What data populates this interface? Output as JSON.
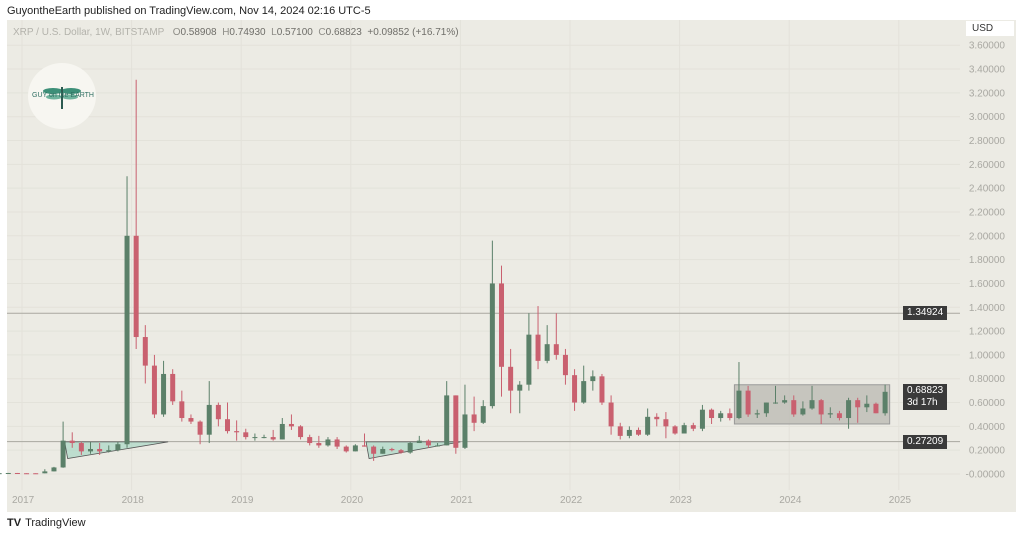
{
  "header": {
    "published": "GuyontheEarth published on TradingView.com, Nov 14, 2024 02:16 UTC-5"
  },
  "legend": {
    "symbol": "XRP / U.S. Dollar, 1W, BITSTAMP",
    "o_label": "O",
    "o": "0.58908",
    "h_label": "H",
    "h": "0.74930",
    "l_label": "L",
    "l": "0.57100",
    "c_label": "C",
    "c": "0.68823",
    "change": "+0.09852 (+16.71%)"
  },
  "currency": "USD",
  "logo": {
    "text": "GUY on the EARTH"
  },
  "footer": {
    "brand": "TradingView",
    "brand_icon": "tradingview-logo-icon"
  },
  "colors": {
    "up": "#5b8069",
    "down": "#c9606f",
    "background": "#ecebe4",
    "pattern_fill": "#9fd3c0",
    "range_box": "#b9b8b2"
  },
  "chart_data": {
    "type": "candlestick",
    "title": "XRP / U.S. Dollar, 1W, BITSTAMP",
    "interval": "1W",
    "y_scale": "linear",
    "ylim": [
      -0.05,
      3.7
    ],
    "grid": true,
    "y_ticks": [
      "3.60000",
      "3.40000",
      "3.20000",
      "3.00000",
      "2.80000",
      "2.60000",
      "2.40000",
      "2.20000",
      "2.00000",
      "1.80000",
      "1.60000",
      "1.40000",
      "1.20000",
      "1.00000",
      "0.80000",
      "0.60000",
      "0.40000",
      "0.20000",
      "-0.00000"
    ],
    "x_ticks": [
      "2017",
      "2018",
      "2019",
      "2020",
      "2021",
      "2022",
      "2023",
      "2024",
      "2025"
    ],
    "start_month": "2016-09",
    "ohlc_monthly_approx": [
      [
        0.0075,
        0.008,
        0.0065,
        0.0068
      ],
      [
        0.0068,
        0.0072,
        0.0065,
        0.007
      ],
      [
        0.007,
        0.009,
        0.0068,
        0.0085
      ],
      [
        0.0085,
        0.0088,
        0.0062,
        0.0065
      ],
      [
        0.0065,
        0.0075,
        0.006,
        0.0063
      ],
      [
        0.0063,
        0.0069,
        0.0055,
        0.0059
      ],
      [
        0.0059,
        0.04,
        0.0058,
        0.022
      ],
      [
        0.022,
        0.06,
        0.021,
        0.055
      ],
      [
        0.055,
        0.44,
        0.052,
        0.28
      ],
      [
        0.28,
        0.35,
        0.22,
        0.26
      ],
      [
        0.26,
        0.27,
        0.16,
        0.19
      ],
      [
        0.19,
        0.27,
        0.17,
        0.21
      ],
      [
        0.21,
        0.26,
        0.16,
        0.19
      ],
      [
        0.19,
        0.24,
        0.18,
        0.2
      ],
      [
        0.2,
        0.27,
        0.19,
        0.25
      ],
      [
        0.25,
        2.5,
        0.22,
        2.0
      ],
      [
        2.0,
        3.31,
        1.05,
        1.15
      ],
      [
        1.15,
        1.25,
        0.76,
        0.91
      ],
      [
        0.91,
        1.0,
        0.47,
        0.5
      ],
      [
        0.5,
        0.95,
        0.48,
        0.84
      ],
      [
        0.84,
        0.88,
        0.58,
        0.61
      ],
      [
        0.61,
        0.7,
        0.44,
        0.47
      ],
      [
        0.47,
        0.5,
        0.42,
        0.44
      ],
      [
        0.44,
        0.45,
        0.25,
        0.33
      ],
      [
        0.33,
        0.78,
        0.26,
        0.58
      ],
      [
        0.58,
        0.6,
        0.4,
        0.46
      ],
      [
        0.46,
        0.6,
        0.34,
        0.36
      ],
      [
        0.36,
        0.45,
        0.28,
        0.35
      ],
      [
        0.35,
        0.38,
        0.29,
        0.31
      ],
      [
        0.31,
        0.34,
        0.28,
        0.31
      ],
      [
        0.31,
        0.33,
        0.3,
        0.31
      ],
      [
        0.31,
        0.37,
        0.28,
        0.29
      ],
      [
        0.29,
        0.47,
        0.29,
        0.42
      ],
      [
        0.42,
        0.5,
        0.37,
        0.4
      ],
      [
        0.4,
        0.41,
        0.29,
        0.31
      ],
      [
        0.31,
        0.33,
        0.24,
        0.26
      ],
      [
        0.26,
        0.32,
        0.22,
        0.24
      ],
      [
        0.24,
        0.31,
        0.23,
        0.29
      ],
      [
        0.29,
        0.31,
        0.21,
        0.23
      ],
      [
        0.23,
        0.24,
        0.18,
        0.19
      ],
      [
        0.19,
        0.25,
        0.19,
        0.24
      ],
      [
        0.24,
        0.34,
        0.23,
        0.23
      ],
      [
        0.23,
        0.24,
        0.11,
        0.17
      ],
      [
        0.17,
        0.23,
        0.17,
        0.21
      ],
      [
        0.21,
        0.22,
        0.19,
        0.2
      ],
      [
        0.2,
        0.21,
        0.17,
        0.18
      ],
      [
        0.18,
        0.27,
        0.17,
        0.26
      ],
      [
        0.26,
        0.32,
        0.26,
        0.28
      ],
      [
        0.28,
        0.29,
        0.22,
        0.24
      ],
      [
        0.24,
        0.26,
        0.23,
        0.24
      ],
      [
        0.24,
        0.78,
        0.24,
        0.66
      ],
      [
        0.66,
        0.66,
        0.17,
        0.22
      ],
      [
        0.22,
        0.75,
        0.21,
        0.5
      ],
      [
        0.5,
        0.65,
        0.36,
        0.43
      ],
      [
        0.43,
        0.62,
        0.42,
        0.57
      ],
      [
        0.57,
        1.96,
        0.55,
        1.6
      ],
      [
        1.6,
        1.75,
        0.65,
        0.9
      ],
      [
        0.9,
        1.05,
        0.51,
        0.7
      ],
      [
        0.7,
        0.78,
        0.51,
        0.75
      ],
      [
        0.75,
        1.35,
        0.7,
        1.17
      ],
      [
        1.17,
        1.41,
        0.88,
        0.95
      ],
      [
        0.95,
        1.25,
        0.93,
        1.09
      ],
      [
        1.09,
        1.35,
        0.96,
        1.0
      ],
      [
        1.0,
        1.05,
        0.75,
        0.83
      ],
      [
        0.83,
        0.88,
        0.53,
        0.6
      ],
      [
        0.6,
        0.91,
        0.59,
        0.78
      ],
      [
        0.78,
        0.87,
        0.7,
        0.82
      ],
      [
        0.82,
        0.84,
        0.58,
        0.6
      ],
      [
        0.6,
        0.66,
        0.33,
        0.4
      ],
      [
        0.4,
        0.43,
        0.29,
        0.32
      ],
      [
        0.32,
        0.4,
        0.3,
        0.37
      ],
      [
        0.37,
        0.39,
        0.32,
        0.33
      ],
      [
        0.33,
        0.55,
        0.32,
        0.48
      ],
      [
        0.48,
        0.51,
        0.4,
        0.46
      ],
      [
        0.46,
        0.52,
        0.3,
        0.4
      ],
      [
        0.4,
        0.41,
        0.33,
        0.34
      ],
      [
        0.34,
        0.43,
        0.34,
        0.41
      ],
      [
        0.41,
        0.43,
        0.36,
        0.38
      ],
      [
        0.38,
        0.58,
        0.36,
        0.54
      ],
      [
        0.54,
        0.55,
        0.42,
        0.47
      ],
      [
        0.47,
        0.53,
        0.44,
        0.51
      ],
      [
        0.51,
        0.55,
        0.45,
        0.47
      ],
      [
        0.47,
        0.94,
        0.46,
        0.7
      ],
      [
        0.7,
        0.74,
        0.48,
        0.5
      ],
      [
        0.5,
        0.54,
        0.47,
        0.51
      ],
      [
        0.51,
        0.6,
        0.48,
        0.6
      ],
      [
        0.6,
        0.74,
        0.59,
        0.6
      ],
      [
        0.6,
        0.66,
        0.59,
        0.62
      ],
      [
        0.62,
        0.66,
        0.48,
        0.5
      ],
      [
        0.5,
        0.61,
        0.49,
        0.55
      ],
      [
        0.55,
        0.74,
        0.54,
        0.62
      ],
      [
        0.62,
        0.63,
        0.42,
        0.5
      ],
      [
        0.5,
        0.56,
        0.47,
        0.51
      ],
      [
        0.51,
        0.53,
        0.45,
        0.47
      ],
      [
        0.47,
        0.64,
        0.38,
        0.62
      ],
      [
        0.62,
        0.64,
        0.43,
        0.56
      ],
      [
        0.56,
        0.66,
        0.52,
        0.59
      ],
      [
        0.59,
        0.6,
        0.51,
        0.51
      ],
      [
        0.51,
        0.75,
        0.49,
        0.69
      ]
    ],
    "horizontal_lines": [
      {
        "value": 1.34924,
        "label": "1.34924"
      },
      {
        "value": 0.27209,
        "label": "0.27209"
      }
    ],
    "last_price": {
      "label": "0.68823",
      "countdown": "3d 17h"
    },
    "range_box": {
      "from": "2023-07",
      "to": "2024-12",
      "low": 0.42,
      "high": 0.7493
    },
    "triangles": [
      {
        "from": "2017-06",
        "to": "2018-05",
        "apex_value": 0.27,
        "base_low": 0.13
      },
      {
        "from": "2020-03",
        "to": "2021-01",
        "apex_value": 0.27,
        "base_low": 0.13
      }
    ]
  }
}
